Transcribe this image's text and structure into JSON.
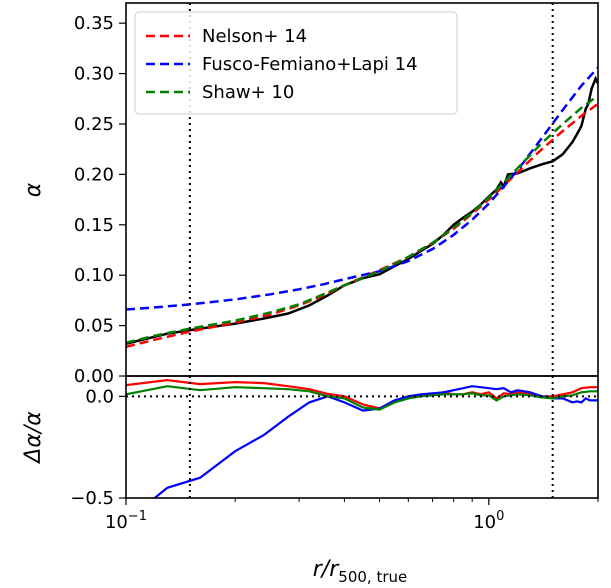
{
  "chart_data": [
    {
      "type": "line",
      "panel": "top",
      "ylabel": "α",
      "xscale": "log",
      "xlim": [
        0.1,
        2.0
      ],
      "ylim": [
        0.0,
        0.37
      ],
      "yticks": [
        0.0,
        0.05,
        0.1,
        0.15,
        0.2,
        0.25,
        0.3,
        0.35
      ],
      "ytick_labels": [
        "0.00",
        "0.05",
        "0.10",
        "0.15",
        "0.20",
        "0.25",
        "0.30",
        "0.35"
      ],
      "vlines": [
        0.15,
        1.5
      ],
      "legend": {
        "placement": "top-left"
      },
      "colors": {
        "Nelson+ 14": "#ff0000",
        "Fusco-Femiano+Lapi 14": "#0000ff",
        "Shaw+ 10": "#008000",
        "data": "#000000"
      },
      "series": [
        {
          "name": "",
          "style": "solid",
          "x": [
            0.1,
            0.13,
            0.16,
            0.2,
            0.24,
            0.28,
            0.32,
            0.36,
            0.4,
            0.45,
            0.5,
            0.55,
            0.6,
            0.65,
            0.7,
            0.75,
            0.8,
            0.85,
            0.9,
            0.95,
            1.0,
            1.05,
            1.08,
            1.1,
            1.13,
            1.2,
            1.3,
            1.4,
            1.5,
            1.6,
            1.7,
            1.75,
            1.8,
            1.85,
            1.88,
            1.92,
            1.97,
            2.0
          ],
          "y": [
            0.032,
            0.042,
            0.047,
            0.052,
            0.057,
            0.062,
            0.07,
            0.08,
            0.09,
            0.097,
            0.101,
            0.109,
            0.116,
            0.124,
            0.131,
            0.14,
            0.15,
            0.157,
            0.163,
            0.17,
            0.178,
            0.185,
            0.192,
            0.188,
            0.2,
            0.201,
            0.206,
            0.21,
            0.213,
            0.22,
            0.232,
            0.24,
            0.248,
            0.265,
            0.27,
            0.285,
            0.295,
            0.29
          ]
        },
        {
          "name": "Nelson+ 14",
          "style": "dashed",
          "x": [
            0.1,
            0.12,
            0.15,
            0.2,
            0.25,
            0.3,
            0.35,
            0.4,
            0.5,
            0.6,
            0.7,
            0.8,
            0.9,
            1.0,
            1.1,
            1.2,
            1.4,
            1.6,
            1.8,
            2.0
          ],
          "y": [
            0.029,
            0.036,
            0.044,
            0.053,
            0.061,
            0.07,
            0.08,
            0.09,
            0.105,
            0.118,
            0.132,
            0.146,
            0.161,
            0.175,
            0.189,
            0.202,
            0.225,
            0.243,
            0.258,
            0.27
          ]
        },
        {
          "name": "Fusco-Femiano+Lapi 14",
          "style": "dashed",
          "x": [
            0.1,
            0.12,
            0.15,
            0.2,
            0.25,
            0.3,
            0.35,
            0.4,
            0.5,
            0.6,
            0.7,
            0.8,
            0.9,
            1.0,
            1.1,
            1.2,
            1.4,
            1.6,
            1.8,
            2.0
          ],
          "y": [
            0.066,
            0.068,
            0.071,
            0.076,
            0.081,
            0.086,
            0.091,
            0.096,
            0.104,
            0.114,
            0.126,
            0.14,
            0.155,
            0.171,
            0.188,
            0.204,
            0.236,
            0.264,
            0.288,
            0.306
          ]
        },
        {
          "name": "Shaw+ 10",
          "style": "dashed",
          "x": [
            0.1,
            0.12,
            0.15,
            0.2,
            0.25,
            0.3,
            0.35,
            0.4,
            0.5,
            0.6,
            0.7,
            0.8,
            0.9,
            1.0,
            1.1,
            1.2,
            1.4,
            1.6,
            1.8,
            2.0
          ],
          "y": [
            0.033,
            0.04,
            0.047,
            0.055,
            0.063,
            0.071,
            0.081,
            0.09,
            0.104,
            0.118,
            0.132,
            0.147,
            0.162,
            0.177,
            0.192,
            0.206,
            0.231,
            0.25,
            0.266,
            0.278
          ]
        }
      ]
    },
    {
      "type": "line",
      "panel": "bottom",
      "ylabel": "Δα/α",
      "xlabel": "r/r",
      "xlabel_sub": "500, true",
      "xscale": "log",
      "xlim": [
        0.1,
        2.0
      ],
      "ylim": [
        -0.5,
        0.1
      ],
      "yticks": [
        -0.5,
        0.0
      ],
      "ytick_labels": [
        "−0.5",
        "0.0"
      ],
      "xticks": [
        0.1,
        1.0
      ],
      "xtick_labels": [
        {
          "base": "10",
          "exp": "−1"
        },
        {
          "base": "10",
          "exp": "0"
        }
      ],
      "hline": 0.0,
      "vlines": [
        0.15,
        1.5
      ],
      "series": [
        {
          "name": "Nelson+ 14",
          "style": "solid",
          "x": [
            0.1,
            0.13,
            0.16,
            0.2,
            0.24,
            0.28,
            0.32,
            0.36,
            0.4,
            0.45,
            0.5,
            0.55,
            0.6,
            0.65,
            0.7,
            0.75,
            0.8,
            0.85,
            0.9,
            0.95,
            1.0,
            1.05,
            1.1,
            1.15,
            1.2,
            1.3,
            1.4,
            1.5,
            1.6,
            1.7,
            1.8,
            1.9,
            2.0
          ],
          "y": [
            0.055,
            0.08,
            0.06,
            0.07,
            0.065,
            0.05,
            0.035,
            0.012,
            0.0,
            -0.04,
            -0.06,
            -0.02,
            -0.005,
            0.0,
            0.01,
            0.02,
            0.01,
            0.01,
            0.02,
            0.01,
            0.02,
            -0.01,
            0.015,
            0.01,
            0.02,
            0.01,
            0.0,
            0.0,
            0.01,
            0.02,
            0.04,
            0.045,
            0.045
          ]
        },
        {
          "name": "Fusco-Femiano+Lapi 14",
          "style": "solid",
          "x": [
            0.12,
            0.13,
            0.16,
            0.2,
            0.24,
            0.28,
            0.32,
            0.36,
            0.4,
            0.45,
            0.5,
            0.55,
            0.6,
            0.65,
            0.7,
            0.75,
            0.8,
            0.85,
            0.9,
            0.95,
            1.0,
            1.05,
            1.1,
            1.15,
            1.2,
            1.3,
            1.4,
            1.5,
            1.6,
            1.7,
            1.75,
            1.8,
            1.85,
            1.9,
            2.0
          ],
          "y": [
            -0.5,
            -0.45,
            -0.4,
            -0.27,
            -0.19,
            -0.1,
            -0.03,
            0.0,
            -0.03,
            -0.07,
            -0.06,
            -0.02,
            0.0,
            0.01,
            0.015,
            0.02,
            0.03,
            0.04,
            0.05,
            0.045,
            0.04,
            0.035,
            0.04,
            0.02,
            0.03,
            0.02,
            0.0,
            -0.01,
            -0.01,
            -0.03,
            -0.025,
            -0.03,
            -0.01,
            -0.02,
            -0.02
          ]
        },
        {
          "name": "Shaw+ 10",
          "style": "solid",
          "x": [
            0.1,
            0.13,
            0.16,
            0.2,
            0.24,
            0.28,
            0.32,
            0.36,
            0.4,
            0.45,
            0.5,
            0.55,
            0.6,
            0.65,
            0.7,
            0.75,
            0.8,
            0.85,
            0.9,
            0.95,
            1.0,
            1.05,
            1.1,
            1.15,
            1.2,
            1.3,
            1.4,
            1.5,
            1.6,
            1.7,
            1.8,
            1.9,
            2.0
          ],
          "y": [
            0.01,
            0.05,
            0.03,
            0.045,
            0.04,
            0.035,
            0.025,
            0.0,
            -0.01,
            -0.055,
            -0.065,
            -0.03,
            -0.01,
            0.0,
            0.005,
            0.01,
            0.01,
            0.01,
            0.015,
            0.005,
            0.005,
            -0.02,
            0.0,
            0.005,
            0.01,
            0.005,
            -0.005,
            -0.01,
            0.0,
            0.005,
            0.02,
            0.025,
            0.025
          ]
        }
      ]
    }
  ]
}
